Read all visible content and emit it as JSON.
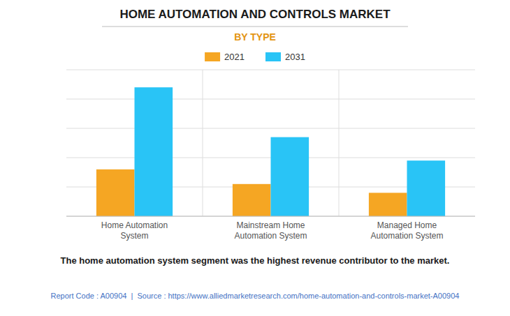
{
  "chart_data": {
    "type": "bar",
    "title": "HOME AUTOMATION AND CONTROLS MARKET",
    "subtitle": "BY TYPE",
    "categories": [
      "Home Automation\nSystem",
      "Mainstream Home\nAutomation System",
      "Managed Home\nAutomation System"
    ],
    "series": [
      {
        "name": "2021",
        "color": "#F5A623",
        "values": [
          32,
          22,
          16
        ]
      },
      {
        "name": "2031",
        "color": "#29C4F6",
        "values": [
          88,
          54,
          38
        ]
      }
    ],
    "ylim": [
      0,
      100
    ],
    "yticks": [
      0,
      20,
      40,
      60,
      80,
      100
    ],
    "grid": true,
    "tick_labels": "x",
    "legend": "top",
    "annotations": [
      "The home automation system segment was the highest revenue contributor to the market.",
      "Report Code : A00904  |  Source : https://www.alliedmarketresearch.com/home-automation-and-controls-market-A00904"
    ]
  }
}
